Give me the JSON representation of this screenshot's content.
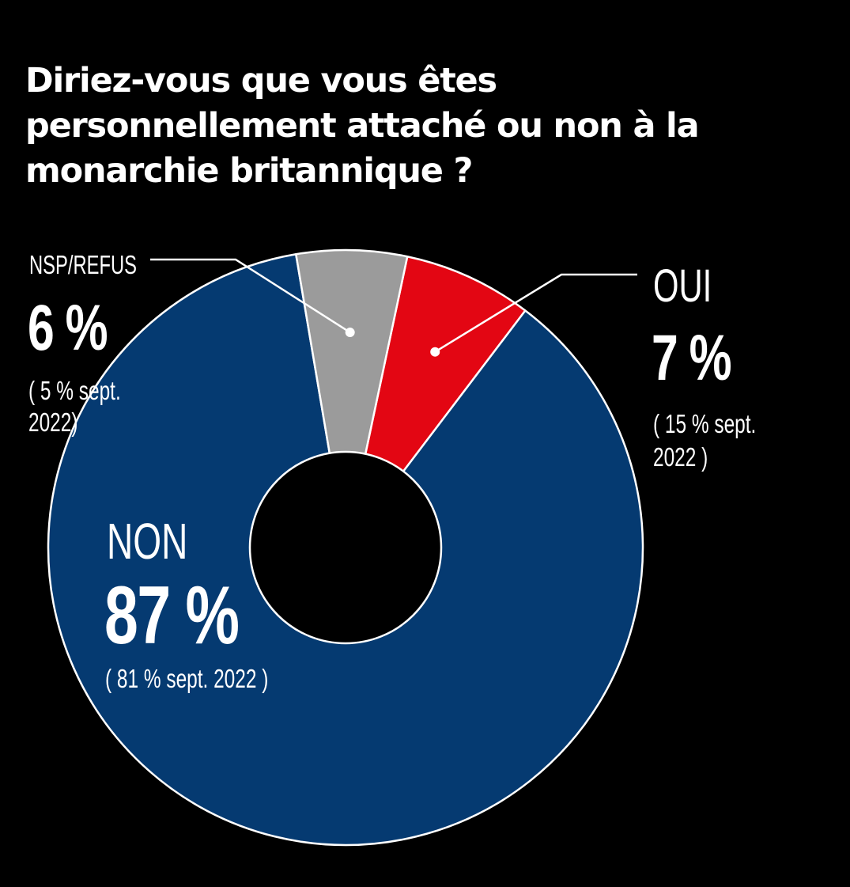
{
  "title": {
    "lines": [
      "Diriez-vous que vous êtes",
      "personnellement attaché ou non à la",
      "monarchie britannique ?"
    ]
  },
  "chart_data": {
    "type": "pie",
    "donut": true,
    "title": "Diriez-vous que vous êtes personnellement attaché ou non à la monarchie britannique ?",
    "categories": [
      "OUI",
      "NON",
      "NSP/REFUS"
    ],
    "values": [
      7,
      87,
      6
    ],
    "unit": "%",
    "slices": [
      {
        "label": "OUI",
        "value": 7,
        "value_label": "7 %",
        "previous": "( 15 % sept. 2022 )",
        "prev_line1": "( 15 % sept.",
        "prev_line2": "2022 )",
        "color": "#e30613"
      },
      {
        "label": "NON",
        "value": 87,
        "value_label": "87 %",
        "previous": "( 81 % sept. 2022 )",
        "color": "#053a71"
      },
      {
        "label": "NSP/REFUS",
        "value": 6,
        "value_label": "6 %",
        "previous": "( 5 % sept. 2022)",
        "prev_line1": "( 5 % sept.",
        "prev_line2": "2022)",
        "color": "#9b9b9b"
      }
    ]
  },
  "colors": {
    "background": "#000000",
    "text": "#ffffff",
    "slice_separator": "#ffffff",
    "leader_line": "#ffffff"
  }
}
